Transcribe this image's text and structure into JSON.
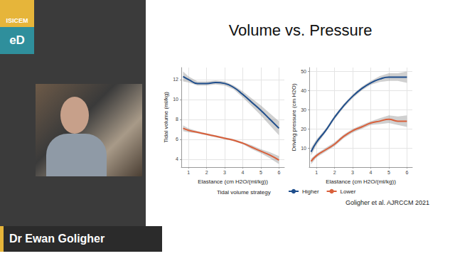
{
  "slide": {
    "title": "Volume vs. Pressure",
    "citation": "Goligher et al. AJRCCM 2021",
    "speaker": "Dr Ewan Goligher",
    "logo": [
      "ISICEM",
      "eD"
    ]
  },
  "chart_data": [
    {
      "type": "line",
      "x_label": "Elastance (cm H2O/(ml/kg))",
      "y_label": "Tidal volume (ml/kg)",
      "x": [
        0.7,
        1,
        1.5,
        2,
        2.5,
        3,
        3.5,
        4,
        4.5,
        5,
        5.5,
        6
      ],
      "series": [
        {
          "name": "Higher",
          "color": "#1f4e8c",
          "values": [
            12.3,
            12.0,
            11.6,
            11.6,
            11.7,
            11.6,
            11.2,
            10.5,
            9.7,
            8.9,
            8.0,
            7.1
          ],
          "ci_lower": [
            11.8,
            11.7,
            11.4,
            11.4,
            11.5,
            11.4,
            11.0,
            10.2,
            9.3,
            8.4,
            7.4,
            6.4
          ],
          "ci_upper": [
            12.8,
            12.3,
            11.8,
            11.8,
            11.9,
            11.8,
            11.4,
            10.8,
            10.1,
            9.4,
            8.6,
            7.8
          ]
        },
        {
          "name": "Lower",
          "color": "#d9603b",
          "values": [
            7.1,
            6.9,
            6.7,
            6.5,
            6.3,
            6.1,
            5.9,
            5.6,
            5.2,
            4.8,
            4.4,
            3.9
          ],
          "ci_lower": [
            6.8,
            6.7,
            6.6,
            6.4,
            6.2,
            6.0,
            5.8,
            5.5,
            5.0,
            4.6,
            4.1,
            3.5
          ],
          "ci_upper": [
            7.4,
            7.1,
            6.8,
            6.6,
            6.4,
            6.2,
            6.0,
            5.7,
            5.4,
            5.0,
            4.7,
            4.3
          ]
        }
      ],
      "xlim": [
        0.6,
        6.3
      ],
      "xticks": [
        1,
        2,
        3,
        4,
        5,
        6
      ],
      "ylim": [
        3.2,
        13.2
      ],
      "yticks": [
        4,
        6,
        8,
        10,
        12
      ],
      "grid": true,
      "legend": "bottom",
      "legend_title": "Tidal volume strategy"
    },
    {
      "type": "line",
      "x_label": "Elastance (cm H2O/(ml/kg))",
      "y_label": "Driving pressure (cm H2O)",
      "x": [
        0.7,
        1,
        1.5,
        2,
        2.5,
        3,
        3.5,
        4,
        4.5,
        5,
        5.5,
        6
      ],
      "series": [
        {
          "name": "Higher",
          "color": "#1f4e8c",
          "values": [
            8,
            13,
            19,
            26,
            32,
            37,
            41,
            44,
            46,
            47,
            47,
            47
          ],
          "ci_lower": [
            6,
            11.5,
            18,
            25,
            31,
            36,
            40,
            43,
            44.5,
            45,
            45,
            44
          ],
          "ci_upper": [
            10,
            14.5,
            20,
            27,
            33,
            38,
            42,
            45,
            47.5,
            49,
            49,
            50
          ]
        },
        {
          "name": "Lower",
          "color": "#d9603b",
          "values": [
            3,
            6,
            9,
            12,
            16,
            19,
            21,
            23,
            24,
            25,
            24,
            24
          ],
          "ci_lower": [
            1.5,
            5,
            8,
            11,
            15,
            18,
            20,
            22,
            22.5,
            23,
            22,
            21
          ],
          "ci_upper": [
            4.5,
            7,
            10,
            13,
            17,
            20,
            22,
            24,
            25.5,
            27,
            26.5,
            27
          ]
        }
      ],
      "xlim": [
        0.6,
        6.3
      ],
      "xticks": [
        1,
        2,
        3,
        4,
        5,
        6
      ],
      "ylim": [
        0,
        52
      ],
      "yticks": [
        10,
        20,
        30,
        40,
        50
      ],
      "grid": true
    }
  ]
}
